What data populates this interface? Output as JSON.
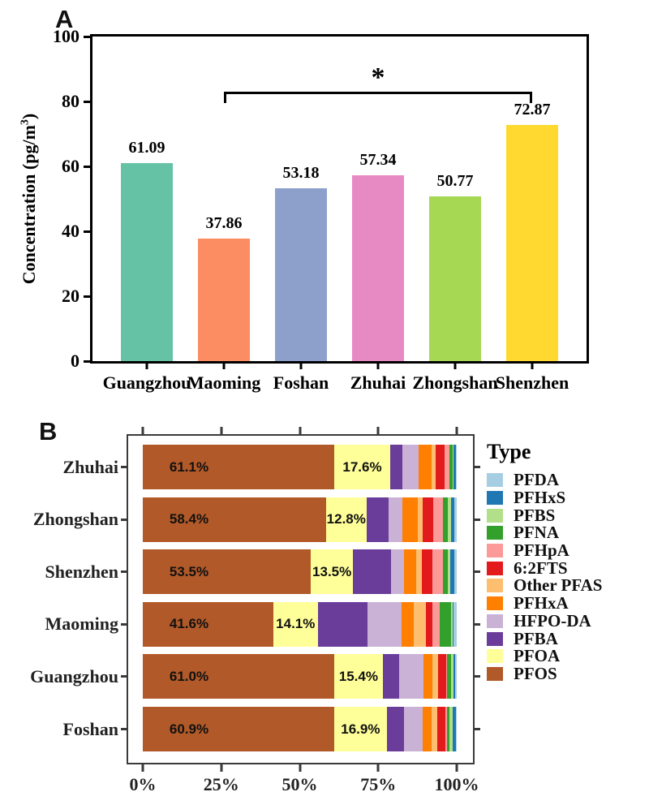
{
  "figure": {
    "panel_a_letter": "A",
    "panel_b_letter": "B"
  },
  "panel_a": {
    "y_title_prefix": "Concentration (pg/m",
    "y_title_sup": "3",
    "y_title_suffix": ")",
    "significance_label": "*"
  },
  "panel_b": {
    "legend_title": "Type"
  },
  "chart_data": [
    {
      "type": "bar",
      "panel": "A",
      "ylabel": "Concentration (pg/m3)",
      "ylim": [
        0,
        100
      ],
      "yticks": [
        0,
        20,
        40,
        60,
        80,
        100
      ],
      "ytick_labels": [
        "0",
        "20",
        "40",
        "60",
        "80",
        "100"
      ],
      "grid": false,
      "categories": [
        "Guangzhou",
        "Maoming",
        "Foshan",
        "Zhuhai",
        "Zhongshan",
        "Shenzhen"
      ],
      "values": [
        61.09,
        37.86,
        53.18,
        57.34,
        50.77,
        72.87
      ],
      "value_labels": [
        "61.09",
        "37.86",
        "53.18",
        "57.34",
        "50.77",
        "72.87"
      ],
      "bar_colors": [
        "#66C2A5",
        "#FC8D62",
        "#8DA0CB",
        "#E78AC3",
        "#A6D854",
        "#FFD92F"
      ],
      "significance": {
        "from": "Maoming",
        "to": "Shenzhen",
        "label": "*"
      }
    },
    {
      "type": "stacked-bar-horizontal",
      "panel": "B",
      "unit": "percent",
      "xlim": [
        0,
        100
      ],
      "xticks": [
        0,
        25,
        50,
        75,
        100
      ],
      "xtick_labels": [
        "0%",
        "25%",
        "50%",
        "75%",
        "100%"
      ],
      "categories": [
        "Zhuhai",
        "Zhongshan",
        "Shenzhen",
        "Maoming",
        "Guangzhou",
        "Foshan"
      ],
      "legend_title": "Type",
      "legend_order": [
        "PFDA",
        "PFHxS",
        "PFBS",
        "PFNA",
        "PFHpA",
        "6:2FTS",
        "Other PFAS",
        "PFHxA",
        "HFPO-DA",
        "PFBA",
        "PFOA",
        "PFOS"
      ],
      "value_labels_shown_for": [
        "PFOS",
        "PFOA"
      ],
      "series": [
        {
          "name": "PFOS",
          "color": "#B15928",
          "values": [
            61.1,
            58.4,
            53.5,
            41.6,
            61.0,
            60.9
          ],
          "labels": [
            "61.1%",
            "58.4%",
            "53.5%",
            "41.6%",
            "61.0%",
            "60.9%"
          ]
        },
        {
          "name": "PFOA",
          "color": "#FFFF99",
          "values": [
            17.6,
            12.8,
            13.5,
            14.1,
            15.4,
            16.9
          ],
          "labels": [
            "17.6%",
            "12.8%",
            "13.5%",
            "14.1%",
            "15.4%",
            "16.9%"
          ]
        },
        {
          "name": "PFBA",
          "color": "#6A3D9A",
          "values": [
            3.9,
            7.1,
            12.2,
            15.9,
            5.2,
            5.3
          ]
        },
        {
          "name": "HFPO-DA",
          "color": "#CAB2D6",
          "values": [
            5.3,
            4.4,
            3.9,
            10.8,
            7.9,
            6.0
          ]
        },
        {
          "name": "PFHxA",
          "color": "#FF7F00",
          "values": [
            4.0,
            4.8,
            4.1,
            3.9,
            2.8,
            3.0
          ]
        },
        {
          "name": "Other PFAS",
          "color": "#FDBF6F",
          "values": [
            1.3,
            1.7,
            1.7,
            3.9,
            1.7,
            1.7
          ]
        },
        {
          "name": "6:2FTS",
          "color": "#E31A1C",
          "values": [
            2.9,
            3.4,
            3.3,
            2.1,
            2.6,
            2.6
          ]
        },
        {
          "name": "PFHpA",
          "color": "#FB9A99",
          "values": [
            1.7,
            3.1,
            3.5,
            2.3,
            0.4,
            0.4
          ]
        },
        {
          "name": "PFNA",
          "color": "#33A02C",
          "values": [
            0.9,
            1.6,
            1.6,
            3.7,
            1.1,
            1.0
          ]
        },
        {
          "name": "PFBS",
          "color": "#B2DF8A",
          "values": [
            0.4,
            1.0,
            0.7,
            0.3,
            1.0,
            0.8
          ]
        },
        {
          "name": "PFHxS",
          "color": "#1F78B4",
          "values": [
            0.6,
            0.9,
            1.2,
            0.4,
            0.4,
            1.1
          ]
        },
        {
          "name": "PFDA",
          "color": "#A6CEE3",
          "values": [
            0.3,
            0.8,
            0.8,
            1.0,
            0.5,
            0.3
          ]
        }
      ]
    }
  ]
}
